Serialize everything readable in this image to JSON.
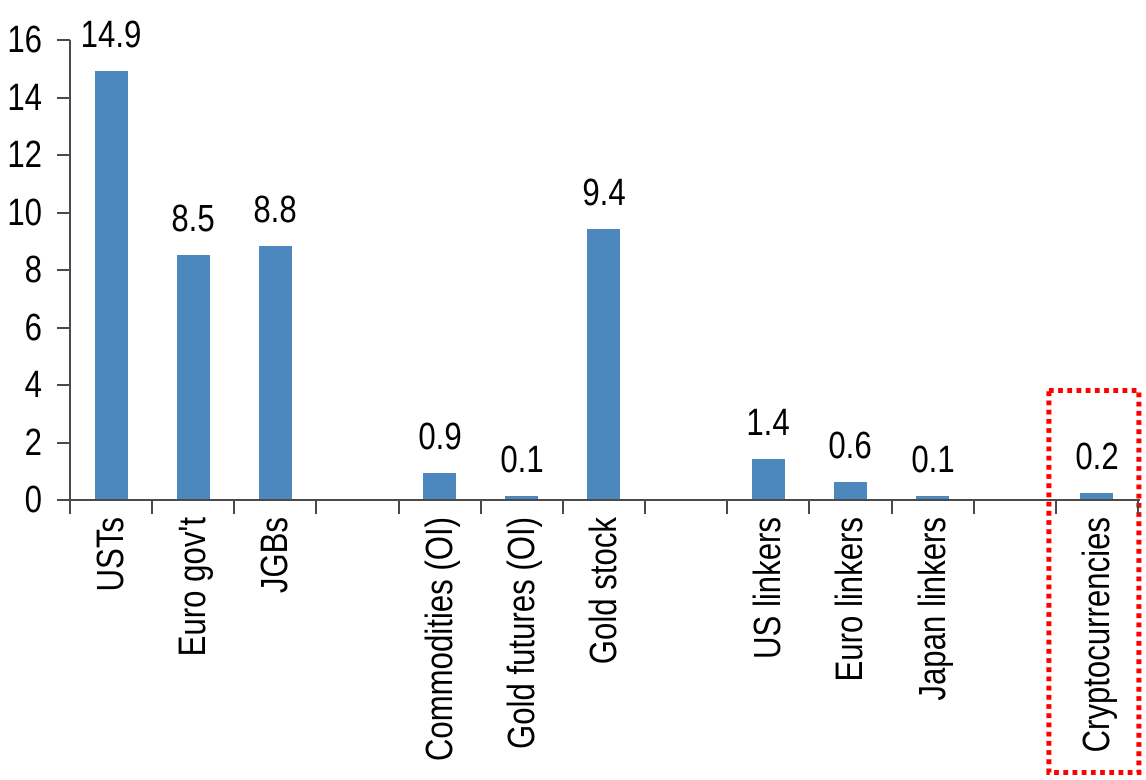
{
  "chart_data": {
    "type": "bar",
    "ylim": [
      0,
      16
    ],
    "y_ticks": [
      0,
      2,
      4,
      6,
      8,
      10,
      12,
      14,
      16
    ],
    "grid": false,
    "legend": "none",
    "n_slots": 13,
    "bar_color": "#4C87BE",
    "axis_color": "#4A4A4A",
    "text_color": "#000000",
    "highlight_box_color": "#FF0000",
    "highlight_box_style": "dotted",
    "series": [
      {
        "label": "USTs",
        "value": 14.9,
        "display": "14.9",
        "slot": 0
      },
      {
        "label": "Euro gov't",
        "value": 8.5,
        "display": "8.5",
        "slot": 1
      },
      {
        "label": "JGBs",
        "value": 8.8,
        "display": "8.8",
        "slot": 2
      },
      {
        "label": "Commodities (OI)",
        "value": 0.9,
        "display": "0.9",
        "slot": 4
      },
      {
        "label": "Gold futures (OI)",
        "value": 0.1,
        "display": "0.1",
        "slot": 5
      },
      {
        "label": "Gold stock",
        "value": 9.4,
        "display": "9.4",
        "slot": 6
      },
      {
        "label": "US linkers",
        "value": 1.4,
        "display": "1.4",
        "slot": 8
      },
      {
        "label": "Euro linkers",
        "value": 0.6,
        "display": "0.6",
        "slot": 9
      },
      {
        "label": "Japan linkers",
        "value": 0.1,
        "display": "0.1",
        "slot": 10
      },
      {
        "label": "Cryptocurrencies",
        "value": 0.2,
        "display": "0.2",
        "slot": 12,
        "highlighted": true
      }
    ]
  }
}
